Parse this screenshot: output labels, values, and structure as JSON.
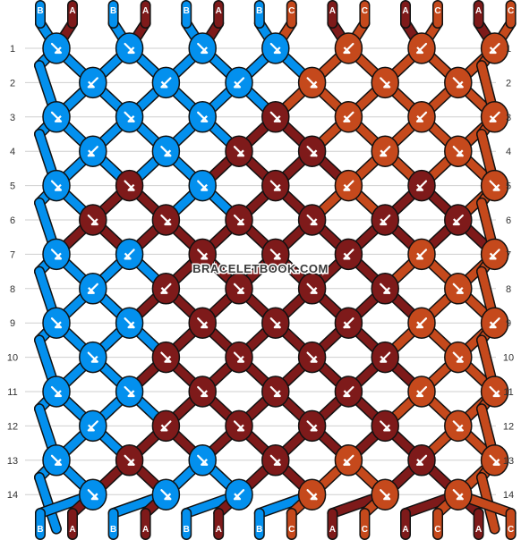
{
  "colors": {
    "A": "#7e1a1a",
    "B": "#0390ee",
    "C": "#c5491c",
    "outline": "#111111",
    "arrow": "#ffffff",
    "gridline": "#cfcfcf"
  },
  "watermark": "BRACELETBOOK.COM",
  "strands_top": [
    "B",
    "A",
    "B",
    "A",
    "B",
    "A",
    "B",
    "C",
    "A",
    "C",
    "A",
    "C",
    "A",
    "C"
  ],
  "strands_bottom": [
    "B",
    "A",
    "B",
    "A",
    "B",
    "A",
    "B",
    "C",
    "A",
    "C",
    "A",
    "C",
    "A",
    "C"
  ],
  "rows": [
    {
      "label": "1",
      "knots": [
        {
          "c": "B",
          "d": "se"
        },
        {
          "c": "B",
          "d": "se"
        },
        {
          "c": "B",
          "d": "se"
        },
        {
          "c": "B",
          "d": "se"
        },
        {
          "c": "C",
          "d": "sw"
        },
        {
          "c": "C",
          "d": "sw"
        },
        {
          "c": "C",
          "d": "sw"
        }
      ]
    },
    {
      "label": "2",
      "knots": [
        {
          "c": "B",
          "d": "sw"
        },
        {
          "c": "B",
          "d": "sw"
        },
        {
          "c": "B",
          "d": "sw"
        },
        {
          "c": "C",
          "d": "se"
        },
        {
          "c": "C",
          "d": "se"
        },
        {
          "c": "C",
          "d": "se"
        }
      ]
    },
    {
      "label": "3",
      "knots": [
        {
          "c": "B",
          "d": "se"
        },
        {
          "c": "B",
          "d": "se"
        },
        {
          "c": "B",
          "d": "se"
        },
        {
          "c": "A",
          "d": "se"
        },
        {
          "c": "C",
          "d": "sw"
        },
        {
          "c": "C",
          "d": "sw"
        },
        {
          "c": "C",
          "d": "sw"
        }
      ]
    },
    {
      "label": "4",
      "knots": [
        {
          "c": "B",
          "d": "sw"
        },
        {
          "c": "B",
          "d": "se"
        },
        {
          "c": "A",
          "d": "se"
        },
        {
          "c": "A",
          "d": "se"
        },
        {
          "c": "C",
          "d": "sw"
        },
        {
          "c": "C",
          "d": "se"
        }
      ]
    },
    {
      "label": "5",
      "knots": [
        {
          "c": "B",
          "d": "se"
        },
        {
          "c": "A",
          "d": "se"
        },
        {
          "c": "B",
          "d": "se"
        },
        {
          "c": "A",
          "d": "se"
        },
        {
          "c": "C",
          "d": "sw"
        },
        {
          "c": "A",
          "d": "sw"
        },
        {
          "c": "C",
          "d": "se"
        }
      ]
    },
    {
      "label": "6",
      "knots": [
        {
          "c": "A",
          "d": "se"
        },
        {
          "c": "A",
          "d": "se"
        },
        {
          "c": "A",
          "d": "se"
        },
        {
          "c": "A",
          "d": "se"
        },
        {
          "c": "A",
          "d": "sw"
        },
        {
          "c": "A",
          "d": "sw"
        }
      ]
    },
    {
      "label": "7",
      "knots": [
        {
          "c": "B",
          "d": "se"
        },
        {
          "c": "B",
          "d": "sw"
        },
        {
          "c": "A",
          "d": "se"
        },
        {
          "c": "A",
          "d": "se"
        },
        {
          "c": "A",
          "d": "sw"
        },
        {
          "c": "C",
          "d": "sw"
        },
        {
          "c": "C",
          "d": "sw"
        }
      ]
    },
    {
      "label": "8",
      "knots": [
        {
          "c": "B",
          "d": "sw"
        },
        {
          "c": "A",
          "d": "sw"
        },
        {
          "c": "A",
          "d": "se"
        },
        {
          "c": "A",
          "d": "se"
        },
        {
          "c": "A",
          "d": "se"
        },
        {
          "c": "C",
          "d": "se"
        }
      ]
    },
    {
      "label": "9",
      "knots": [
        {
          "c": "B",
          "d": "se"
        },
        {
          "c": "B",
          "d": "se"
        },
        {
          "c": "A",
          "d": "se"
        },
        {
          "c": "A",
          "d": "se"
        },
        {
          "c": "A",
          "d": "sw"
        },
        {
          "c": "C",
          "d": "sw"
        },
        {
          "c": "C",
          "d": "sw"
        }
      ]
    },
    {
      "label": "10",
      "knots": [
        {
          "c": "B",
          "d": "se"
        },
        {
          "c": "A",
          "d": "se"
        },
        {
          "c": "A",
          "d": "se"
        },
        {
          "c": "A",
          "d": "se"
        },
        {
          "c": "A",
          "d": "sw"
        },
        {
          "c": "C",
          "d": "se"
        }
      ]
    },
    {
      "label": "11",
      "knots": [
        {
          "c": "B",
          "d": "se"
        },
        {
          "c": "B",
          "d": "se"
        },
        {
          "c": "A",
          "d": "se"
        },
        {
          "c": "A",
          "d": "se"
        },
        {
          "c": "A",
          "d": "sw"
        },
        {
          "c": "C",
          "d": "sw"
        },
        {
          "c": "C",
          "d": "se"
        }
      ]
    },
    {
      "label": "12",
      "knots": [
        {
          "c": "B",
          "d": "sw"
        },
        {
          "c": "A",
          "d": "sw"
        },
        {
          "c": "A",
          "d": "se"
        },
        {
          "c": "A",
          "d": "se"
        },
        {
          "c": "A",
          "d": "se"
        },
        {
          "c": "C",
          "d": "se"
        }
      ]
    },
    {
      "label": "13",
      "knots": [
        {
          "c": "B",
          "d": "se"
        },
        {
          "c": "A",
          "d": "se"
        },
        {
          "c": "B",
          "d": "se"
        },
        {
          "c": "A",
          "d": "se"
        },
        {
          "c": "C",
          "d": "sw"
        },
        {
          "c": "A",
          "d": "sw"
        },
        {
          "c": "C",
          "d": "se"
        }
      ]
    },
    {
      "label": "14",
      "knots": [
        {
          "c": "B",
          "d": "se"
        },
        {
          "c": "B",
          "d": "se"
        },
        {
          "c": "B",
          "d": "sw"
        },
        {
          "c": "C",
          "d": "se"
        },
        {
          "c": "C",
          "d": "se"
        },
        {
          "c": "C",
          "d": "se"
        }
      ]
    }
  ]
}
